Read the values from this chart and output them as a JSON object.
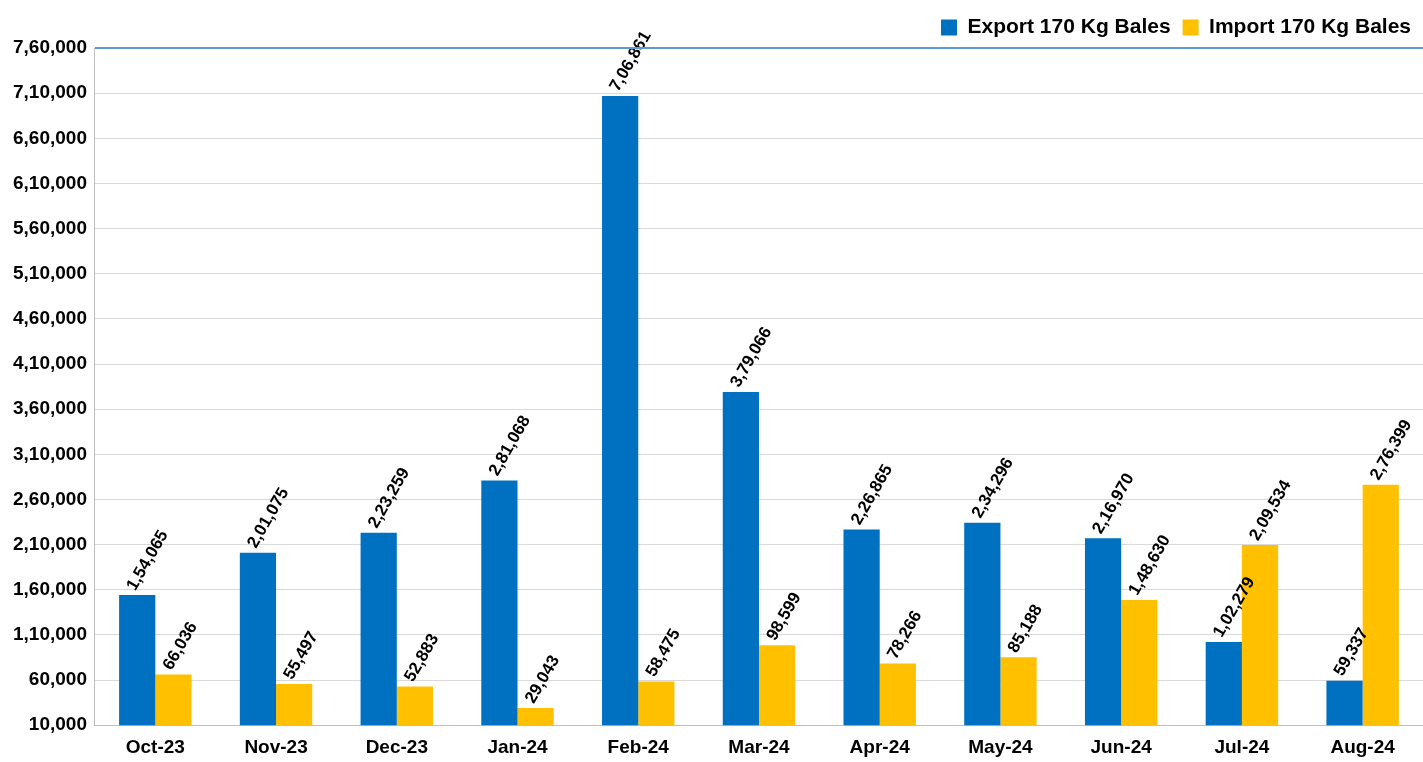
{
  "chart_data": {
    "type": "bar",
    "categories": [
      "Oct-23",
      "Nov-23",
      "Dec-23",
      "Jan-24",
      "Feb-24",
      "Mar-24",
      "Apr-24",
      "May-24",
      "Jun-24",
      "Jul-24",
      "Aug-24"
    ],
    "series": [
      {
        "name": "Export 170 Kg Bales",
        "color": "#0070c0",
        "values": [
          154065,
          201075,
          223259,
          281068,
          706861,
          379066,
          226865,
          234296,
          216970,
          102279,
          59337
        ],
        "value_labels": [
          "1,54,065",
          "2,01,075",
          "2,23,259",
          "2,81,068",
          "7,06,861",
          "3,79,066",
          "2,26,865",
          "2,34,296",
          "2,16,970",
          "1,02,279",
          "59,337"
        ]
      },
      {
        "name": "Import 170 Kg Bales",
        "color": "#ffc000",
        "values": [
          66036,
          55497,
          52883,
          29043,
          58475,
          98599,
          78266,
          85188,
          148630,
          209534,
          276399
        ],
        "value_labels": [
          "66,036",
          "55,497",
          "52,883",
          "29,043",
          "58,475",
          "98,599",
          "78,266",
          "85,188",
          "1,48,630",
          "2,09,534",
          "2,76,399"
        ]
      }
    ],
    "ylim": [
      10000,
      760000
    ],
    "yticks": [
      {
        "value": 10000,
        "label": "10,000"
      },
      {
        "value": 60000,
        "label": "60,000"
      },
      {
        "value": 110000,
        "label": "1,10,000"
      },
      {
        "value": 160000,
        "label": "1,60,000"
      },
      {
        "value": 210000,
        "label": "2,10,000"
      },
      {
        "value": 260000,
        "label": "2,60,000"
      },
      {
        "value": 310000,
        "label": "3,10,000"
      },
      {
        "value": 360000,
        "label": "3,60,000"
      },
      {
        "value": 410000,
        "label": "4,10,000"
      },
      {
        "value": 460000,
        "label": "4,60,000"
      },
      {
        "value": 510000,
        "label": "5,10,000"
      },
      {
        "value": 560000,
        "label": "5,60,000"
      },
      {
        "value": 610000,
        "label": "6,10,000"
      },
      {
        "value": 660000,
        "label": "6,60,000"
      },
      {
        "value": 710000,
        "label": "7,10,000"
      },
      {
        "value": 760000,
        "label": "7,60,000"
      }
    ],
    "grid": "y",
    "legend": "top right"
  }
}
